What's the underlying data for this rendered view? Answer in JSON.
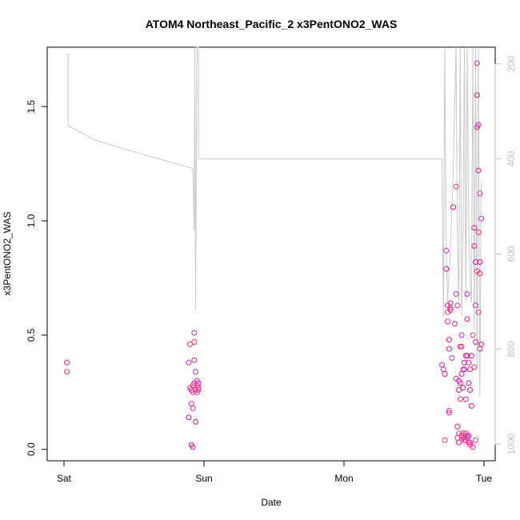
{
  "chart_data": {
    "type": "scatter",
    "title": "ATOM4 Northeast_Pacific_2 x3PentONO2_WAS",
    "xlabel": "Date",
    "ylabel": "x3PentONO2_WAS",
    "x_ticks": [
      {
        "value": 0,
        "label": "Sat"
      },
      {
        "value": 1,
        "label": "Sun"
      },
      {
        "value": 2,
        "label": "Mon"
      },
      {
        "value": 3,
        "label": "Tue"
      }
    ],
    "x_range": [
      -0.12,
      3.08
    ],
    "y_range": [
      -0.05,
      1.76
    ],
    "y_ticks": [
      {
        "value": 0,
        "label": "0.0"
      },
      {
        "value": 0.5,
        "label": "0.5"
      },
      {
        "value": 1.0,
        "label": "1.0"
      },
      {
        "value": 1.5,
        "label": "1.5"
      }
    ],
    "y2_range": [
      1035,
      165
    ],
    "y2_ticks": [
      {
        "value": 200,
        "label": "200"
      },
      {
        "value": 400,
        "label": "400"
      },
      {
        "value": 600,
        "label": "600"
      },
      {
        "value": 800,
        "label": "800"
      },
      {
        "value": 1000,
        "label": "1000"
      }
    ],
    "colors": {
      "points": [
        "#ff1493",
        "#e0138a",
        "#d326c8",
        "#ff3366"
      ],
      "line": "#c8c8c8"
    },
    "secondary_line": {
      "x": [
        0.02,
        0.03,
        0.03,
        0.03,
        0.22,
        0.5,
        0.8,
        0.92,
        0.93,
        0.935,
        0.94,
        0.95,
        0.96,
        0.96,
        0.98,
        1.0,
        1.5,
        2.0,
        2.5,
        2.7,
        2.71,
        2.72,
        2.73,
        2.74,
        2.76,
        2.78,
        2.8,
        2.81,
        2.82,
        2.83,
        2.84,
        2.85,
        2.86,
        2.87,
        2.88,
        2.89,
        2.9,
        2.91,
        2.92,
        2.93,
        2.94,
        2.95,
        2.96,
        2.97,
        2.98
      ],
      "y": [
        180,
        180,
        330,
        330,
        360,
        385,
        410,
        420,
        550,
        165,
        718,
        165,
        165,
        400,
        400,
        400,
        400,
        400,
        400,
        400,
        730,
        165,
        600,
        700,
        590,
        430,
        165,
        570,
        700,
        165,
        730,
        560,
        165,
        700,
        165,
        520,
        650,
        700,
        165,
        760,
        165,
        840,
        165,
        900,
        450
      ]
    },
    "series": [
      {
        "x": [
          0.02,
          0.02,
          0.89,
          0.89,
          0.9,
          0.9,
          0.91,
          0.91,
          0.91,
          0.92,
          0.92,
          0.92,
          0.92,
          0.93,
          0.93,
          0.93,
          0.93,
          0.94,
          0.94,
          0.94,
          0.95,
          0.95,
          0.95,
          0.96,
          0.96,
          0.96,
          2.7,
          2.71,
          2.72,
          2.72,
          2.73,
          2.73,
          2.74,
          2.74,
          2.74,
          2.75,
          2.75,
          2.75,
          2.75,
          2.76,
          2.76,
          2.76,
          2.77,
          2.78,
          2.79,
          2.8,
          2.8,
          2.8,
          2.81,
          2.81,
          2.81,
          2.82,
          2.82,
          2.82,
          2.82,
          2.83,
          2.83,
          2.83,
          2.84,
          2.84,
          2.84,
          2.84,
          2.85,
          2.85,
          2.85,
          2.85,
          2.86,
          2.86,
          2.86,
          2.86,
          2.87,
          2.87,
          2.87,
          2.87,
          2.88,
          2.88,
          2.88,
          2.88,
          2.88,
          2.89,
          2.89,
          2.89,
          2.89,
          2.9,
          2.9,
          2.9,
          2.9,
          2.91,
          2.91,
          2.92,
          2.92,
          2.93,
          2.93,
          2.93,
          2.94,
          2.94,
          2.94,
          2.94,
          2.95,
          2.95,
          2.95,
          2.95,
          2.96,
          2.96,
          2.96,
          2.96,
          2.97,
          2.97,
          2.97,
          2.97,
          2.98,
          2.98
        ],
        "y": [
          0.38,
          0.34,
          0.38,
          0.14,
          0.46,
          0.27,
          0.2,
          0.26,
          0.02,
          0.28,
          0.25,
          0.01,
          0.18,
          0.47,
          0.51,
          0.39,
          0.29,
          0.26,
          0.34,
          0.12,
          0.25,
          0.28,
          0.3,
          0.27,
          0.29,
          0.26,
          0.37,
          0.35,
          0.33,
          0.04,
          0.87,
          0.79,
          0.63,
          0.6,
          0.56,
          0.48,
          0.44,
          0.17,
          0.16,
          0.61,
          0.64,
          0.62,
          0.4,
          1.06,
          0.55,
          1.15,
          0.68,
          0.31,
          0.1,
          0.05,
          0.63,
          0.26,
          0.03,
          0.07,
          0.3,
          0.45,
          0.29,
          0.22,
          0.5,
          0.33,
          0.06,
          0.45,
          0.35,
          0.27,
          0.05,
          0.07,
          0.35,
          0.38,
          0.04,
          0.06,
          0.22,
          0.41,
          0.04,
          0.07,
          0.68,
          0.57,
          0.41,
          0.05,
          0.06,
          0.29,
          0.38,
          0.03,
          0.06,
          0.26,
          0.35,
          0.02,
          0.03,
          0.41,
          0.19,
          0.5,
          0.01,
          0.97,
          0.89,
          0.36,
          0.63,
          0.82,
          0.47,
          0.04,
          1.69,
          1.55,
          1.41,
          0.78,
          1.42,
          1.22,
          0.95,
          0.6,
          1.12,
          0.82,
          0.77,
          0.44,
          1.01,
          0.46
        ]
      }
    ]
  }
}
